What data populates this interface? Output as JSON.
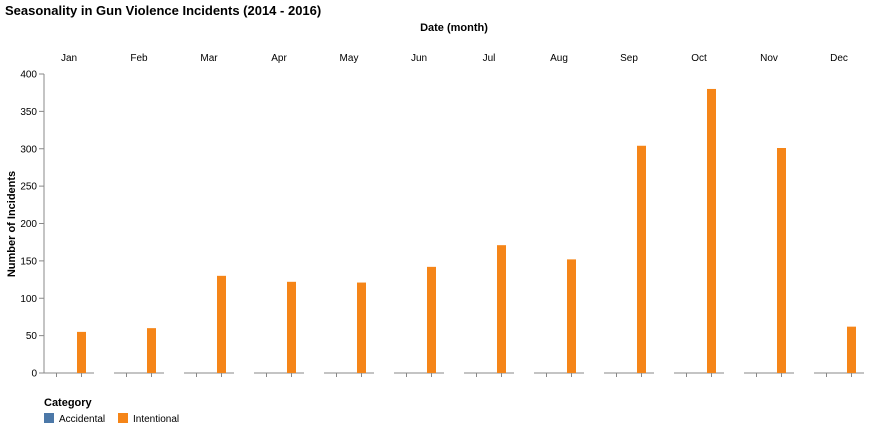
{
  "chart_data": {
    "type": "bar",
    "title": "Seasonality in Gun Violence Incidents (2014 - 2016)",
    "xlabel": "Date (month)",
    "ylabel": "Number of Incidents",
    "categories": [
      "Jan",
      "Feb",
      "Mar",
      "Apr",
      "May",
      "Jun",
      "Jul",
      "Aug",
      "Sep",
      "Oct",
      "Nov",
      "Dec"
    ],
    "series": [
      {
        "name": "Accidental",
        "color": "#4c78a8",
        "values": [
          0,
          0,
          0,
          0,
          0,
          0,
          0,
          0,
          0,
          0,
          0,
          0
        ]
      },
      {
        "name": "Intentional",
        "color": "#f58518",
        "values": [
          55,
          60,
          130,
          122,
          121,
          142,
          171,
          152,
          304,
          380,
          301,
          62
        ]
      }
    ],
    "ylim": [
      0,
      400
    ],
    "yticks": [
      0,
      50,
      100,
      150,
      200,
      250,
      300,
      350,
      400
    ],
    "grid": false,
    "legend": {
      "title": "Category",
      "placement": "bottom-left"
    }
  }
}
